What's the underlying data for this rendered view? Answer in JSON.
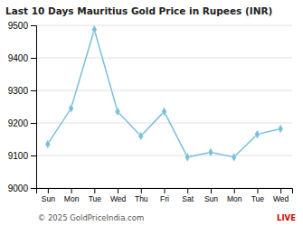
{
  "chart_data": {
    "type": "line",
    "title": "Last 10 Days Mauritius Gold Price in Rupees (INR)",
    "categories": [
      "Sun",
      "Mon",
      "Tue",
      "Wed",
      "Thu",
      "Fri",
      "Sat",
      "Sun",
      "Mon",
      "Tue",
      "Wed"
    ],
    "values": [
      9135,
      9245,
      9487,
      9235,
      9160,
      9235,
      9095,
      9110,
      9095,
      9165,
      9182
    ],
    "color": "#7abfda",
    "marker": "diamond",
    "ylim": [
      9000,
      9500
    ],
    "yticks": [
      9000,
      9100,
      9200,
      9300,
      9400,
      9500
    ],
    "grid": true,
    "annotations": [
      {
        "text": "© 2025 GoldPriceIndia.com"
      },
      {
        "text": "LIVE",
        "color": "#cc0000"
      }
    ]
  }
}
